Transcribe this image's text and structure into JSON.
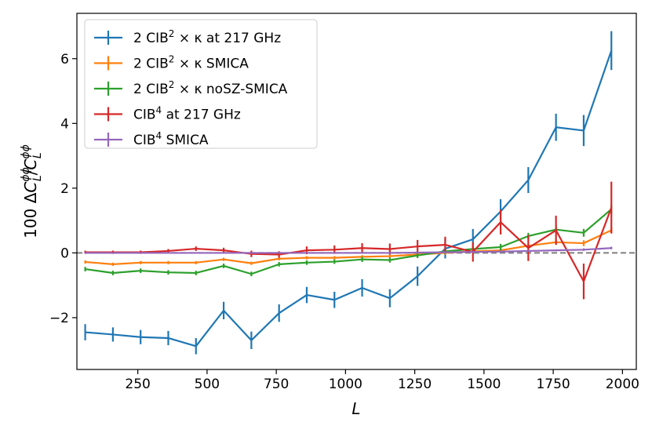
{
  "chart_data": {
    "type": "line",
    "title": "",
    "xlabel": "L",
    "ylabel_parts": {
      "prefix": "100",
      "delta": "Δ",
      "c": "C",
      "sub": "L",
      "sup": "ϕϕ",
      "slash": "/"
    },
    "xlim": [
      30,
      2050
    ],
    "ylim": [
      -3.6,
      7.4
    ],
    "xticks": [
      250,
      500,
      750,
      1000,
      1250,
      1500,
      1750,
      2000
    ],
    "xtick_labels": [
      "250",
      "500",
      "750",
      "1000",
      "1250",
      "1500",
      "1750",
      "2000"
    ],
    "yticks": [
      -2,
      0,
      2,
      4,
      6
    ],
    "ytick_labels": [
      "−2",
      "0",
      "2",
      "4",
      "6"
    ],
    "zero_line": {
      "y": 0,
      "style": "dashed",
      "color": "#7f7f7f"
    },
    "legend_position": "top-left",
    "x": [
      60,
      160,
      260,
      360,
      460,
      560,
      660,
      760,
      860,
      960,
      1060,
      1160,
      1260,
      1360,
      1460,
      1560,
      1660,
      1760,
      1860,
      1960
    ],
    "series": [
      {
        "name_parts": {
          "a": "2 CIB",
          "sup": "2",
          "b": " × κ at 217 GHz"
        },
        "color": "#1f77b4",
        "values": [
          -2.45,
          -2.52,
          -2.6,
          -2.63,
          -2.88,
          -1.78,
          -2.7,
          -1.86,
          -1.3,
          -1.45,
          -1.08,
          -1.4,
          -0.72,
          0.13,
          0.42,
          1.28,
          2.25,
          3.88,
          3.78,
          6.25
        ],
        "errors": [
          0.25,
          0.22,
          0.22,
          0.22,
          0.25,
          0.27,
          0.27,
          0.27,
          0.25,
          0.25,
          0.27,
          0.28,
          0.3,
          0.3,
          0.32,
          0.38,
          0.4,
          0.42,
          0.48,
          0.6
        ]
      },
      {
        "name_parts": {
          "a": "2 CIB",
          "sup": "2",
          "b": " × κ SMICA"
        },
        "color": "#ff7f0e",
        "values": [
          -0.28,
          -0.35,
          -0.3,
          -0.3,
          -0.3,
          -0.2,
          -0.32,
          -0.18,
          -0.15,
          -0.15,
          -0.12,
          -0.1,
          -0.05,
          0.0,
          0.05,
          0.08,
          0.22,
          0.33,
          0.3,
          0.7
        ],
        "errors": [
          0.05,
          0.05,
          0.05,
          0.05,
          0.05,
          0.05,
          0.05,
          0.05,
          0.05,
          0.05,
          0.05,
          0.06,
          0.06,
          0.06,
          0.07,
          0.07,
          0.08,
          0.08,
          0.09,
          0.1
        ]
      },
      {
        "name_parts": {
          "a": "2 CIB",
          "sup": "2",
          "b": " × κ noSZ-SMICA"
        },
        "color": "#2ca02c",
        "values": [
          -0.5,
          -0.62,
          -0.55,
          -0.6,
          -0.62,
          -0.4,
          -0.65,
          -0.35,
          -0.3,
          -0.27,
          -0.2,
          -0.22,
          -0.08,
          0.05,
          0.12,
          0.18,
          0.52,
          0.72,
          0.62,
          1.35
        ],
        "errors": [
          0.07,
          0.07,
          0.07,
          0.07,
          0.07,
          0.07,
          0.07,
          0.07,
          0.07,
          0.07,
          0.08,
          0.08,
          0.08,
          0.08,
          0.09,
          0.1,
          0.1,
          0.11,
          0.12,
          0.14
        ]
      },
      {
        "name_parts": {
          "a": "CIB",
          "sup": "4",
          "b": " at 217 GHz"
        },
        "color": "#d62728",
        "values": [
          0.02,
          0.02,
          0.02,
          0.06,
          0.13,
          0.08,
          -0.03,
          -0.05,
          0.08,
          0.1,
          0.15,
          0.12,
          0.2,
          0.25,
          0.03,
          0.95,
          0.15,
          0.7,
          -0.88,
          1.4
        ],
        "errors": [
          0.05,
          0.05,
          0.05,
          0.06,
          0.07,
          0.08,
          0.1,
          0.1,
          0.12,
          0.13,
          0.15,
          0.17,
          0.2,
          0.25,
          0.3,
          0.38,
          0.4,
          0.45,
          0.55,
          0.8
        ]
      },
      {
        "name_parts": {
          "a": "CIB",
          "sup": "4",
          "b": " SMICA"
        },
        "color": "#9467bd",
        "values": [
          0.0,
          0.0,
          0.0,
          0.0,
          0.0,
          0.0,
          0.0,
          0.0,
          0.0,
          0.0,
          0.0,
          0.0,
          0.01,
          0.02,
          0.03,
          0.04,
          0.06,
          0.08,
          0.1,
          0.15
        ],
        "errors": [
          0.02,
          0.02,
          0.02,
          0.02,
          0.02,
          0.02,
          0.02,
          0.02,
          0.02,
          0.02,
          0.02,
          0.02,
          0.02,
          0.02,
          0.03,
          0.03,
          0.03,
          0.03,
          0.04,
          0.04
        ]
      }
    ]
  }
}
